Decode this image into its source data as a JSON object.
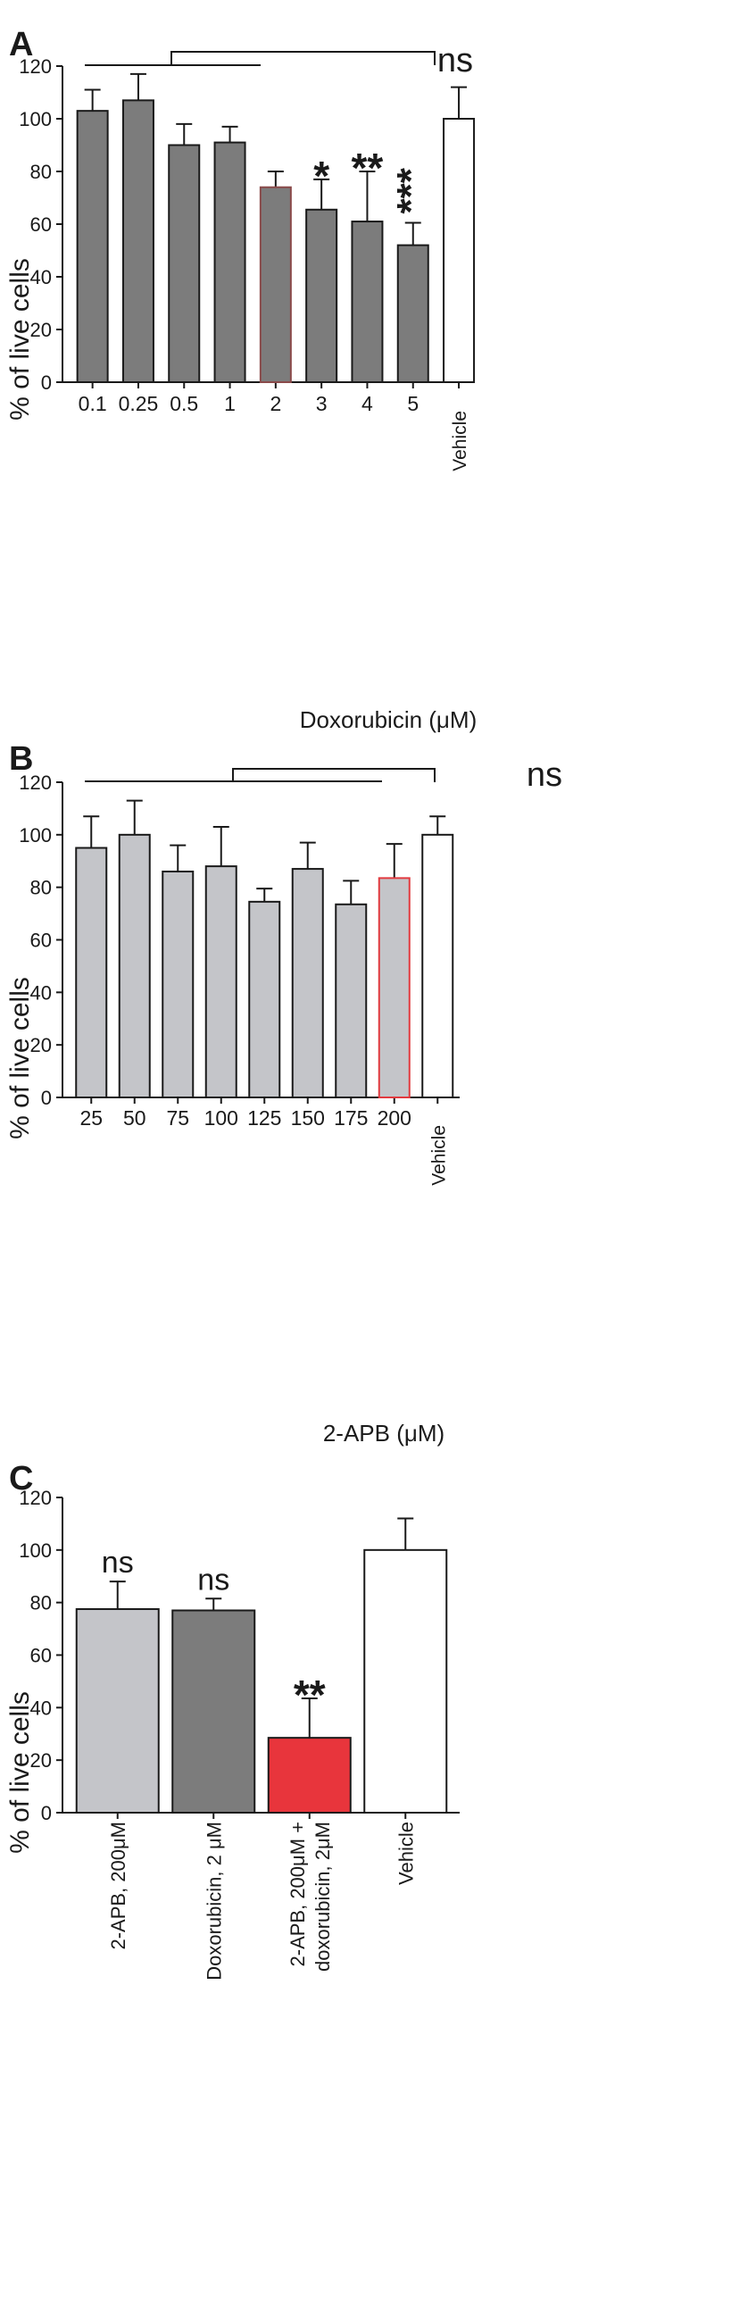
{
  "chart_data": [
    {
      "type": "bar",
      "panel_label": "A",
      "title": "",
      "xlabel": "Doxorubicin (μM)",
      "ylabel": "% of live cells",
      "ylim": [
        0,
        120
      ],
      "yticks": [
        "0",
        "20",
        "40",
        "60",
        "80",
        "100",
        "120"
      ],
      "grid": false,
      "categories": [
        "0.1",
        "0.25",
        "0.5",
        "1",
        "2",
        "3",
        "4",
        "5",
        "Vehicle"
      ],
      "values": [
        103,
        107,
        90,
        91,
        74,
        65.5,
        61,
        52,
        100
      ],
      "errors": [
        8,
        10,
        8,
        6,
        6,
        11.5,
        19,
        8.5,
        12
      ],
      "fill_colors": [
        "#7c7c7c",
        "#7c7c7c",
        "#7c7c7c",
        "#7c7c7c",
        "#7c7c7c",
        "#7c7c7c",
        "#7c7c7c",
        "#7c7c7c",
        "#ffffff"
      ],
      "edge_colors": [
        "#1a1a1a",
        "#1a1a1a",
        "#1a1a1a",
        "#1a1a1a",
        "#8a4a4a",
        "#1a1a1a",
        "#1a1a1a",
        "#1a1a1a",
        "#1a1a1a"
      ],
      "annotations": [
        "",
        "",
        "",
        "",
        "",
        "*",
        "**",
        "***",
        ""
      ],
      "bracket_label": "ns"
    },
    {
      "type": "bar",
      "panel_label": "B",
      "title": "",
      "xlabel": "2-APB (μM)",
      "ylabel": "% of live cells",
      "ylim": [
        0,
        120
      ],
      "yticks": [
        "0",
        "20",
        "40",
        "60",
        "80",
        "100",
        "120"
      ],
      "grid": false,
      "categories": [
        "25",
        "50",
        "75",
        "100",
        "125",
        "150",
        "175",
        "200",
        "Vehicle"
      ],
      "values": [
        95,
        100,
        86,
        88,
        74.5,
        87,
        73.5,
        83.5,
        100
      ],
      "errors": [
        12,
        13,
        10,
        15,
        5,
        10,
        9,
        13,
        7
      ],
      "fill_colors": [
        "#c4c5c9",
        "#c4c5c9",
        "#c4c5c9",
        "#c4c5c9",
        "#c4c5c9",
        "#c4c5c9",
        "#c4c5c9",
        "#c4c5c9",
        "#ffffff"
      ],
      "edge_colors": [
        "#1a1a1a",
        "#1a1a1a",
        "#1a1a1a",
        "#1a1a1a",
        "#1a1a1a",
        "#1a1a1a",
        "#1a1a1a",
        "#e23a3f",
        "#1a1a1a"
      ],
      "annotations": [
        "",
        "",
        "",
        "",
        "",
        "",
        "",
        "",
        ""
      ],
      "bracket_label": "ns"
    },
    {
      "type": "bar",
      "panel_label": "C",
      "title": "",
      "xlabel": "",
      "ylabel": "% of live cells",
      "ylim": [
        0,
        120
      ],
      "yticks": [
        "0",
        "20",
        "40",
        "60",
        "80",
        "100",
        "120"
      ],
      "grid": false,
      "categories": [
        "2-APB, 200μM",
        "Doxorubicin, 2 μM",
        "2-APB, 200μM +\ndoxorubicin, 2μM",
        "Vehicle"
      ],
      "values": [
        77.5,
        77,
        28.5,
        100
      ],
      "errors": [
        10.5,
        4.5,
        15,
        12
      ],
      "fill_colors": [
        "#c4c5c9",
        "#7c7c7c",
        "#e8353c",
        "#ffffff"
      ],
      "edge_colors": [
        "#1a1a1a",
        "#1a1a1a",
        "#1a1a1a",
        "#1a1a1a"
      ],
      "annotations": [
        "ns",
        "ns",
        "**",
        ""
      ],
      "bracket_label": ""
    }
  ]
}
